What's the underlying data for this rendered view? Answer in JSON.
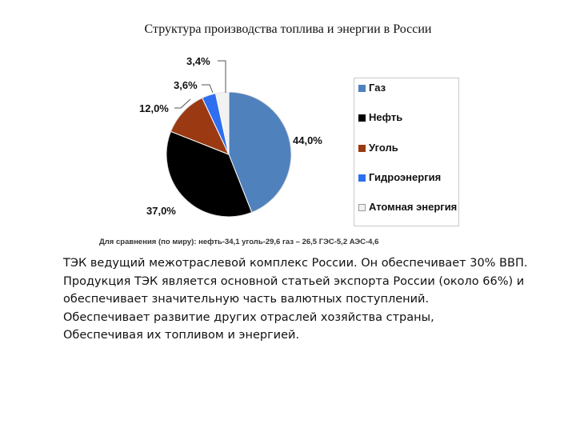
{
  "page_title": "Структура производства топлива и энергии в России",
  "chart_data": {
    "type": "pie",
    "title": "Структура производства топлива и энергии в России",
    "slices": [
      {
        "label": "Газ",
        "value": 44.0,
        "display": "44,0%",
        "color": "#4f81bd"
      },
      {
        "label": "Нефть",
        "value": 37.0,
        "display": "37,0%",
        "color": "#000000"
      },
      {
        "label": "Уголь",
        "value": 12.0,
        "display": "12,0%",
        "color": "#9b3a12"
      },
      {
        "label": "Гидроэнергия",
        "value": 3.6,
        "display": "3,6%",
        "color": "#2f6ef0"
      },
      {
        "label": "Атомная энергия",
        "value": 3.4,
        "display": "3,4%",
        "color": "#f2f2f2"
      }
    ],
    "legend_position": "right",
    "footnote": "Для сравнения (по миру): нефть-34,1  уголь-29,6  газ – 26,5 ГЭС-5,2  АЭС-4,6"
  },
  "legend": {
    "items": [
      {
        "label": "Газ",
        "color": "#4f81bd"
      },
      {
        "label": "Нефть",
        "color": "#000000"
      },
      {
        "label": "Уголь",
        "color": "#9b3a12"
      },
      {
        "label": "Гидроэнергия",
        "color": "#2f6ef0"
      },
      {
        "label": "Атомная энергия",
        "color": "#f2f2f2"
      }
    ]
  },
  "text_lines": [
    "ТЭК ведущий межотраслевой комплекс России. Он обеспечивает 30% ВВП.",
    "Продукция ТЭК является основной статьей экспорта России (около 66%) и",
    "обеспечивает значительную часть валютных поступлений.",
    "Обеспечивает развитие других отраслей хозяйства страны,",
    "Обеспечивая их топливом и энергией."
  ]
}
